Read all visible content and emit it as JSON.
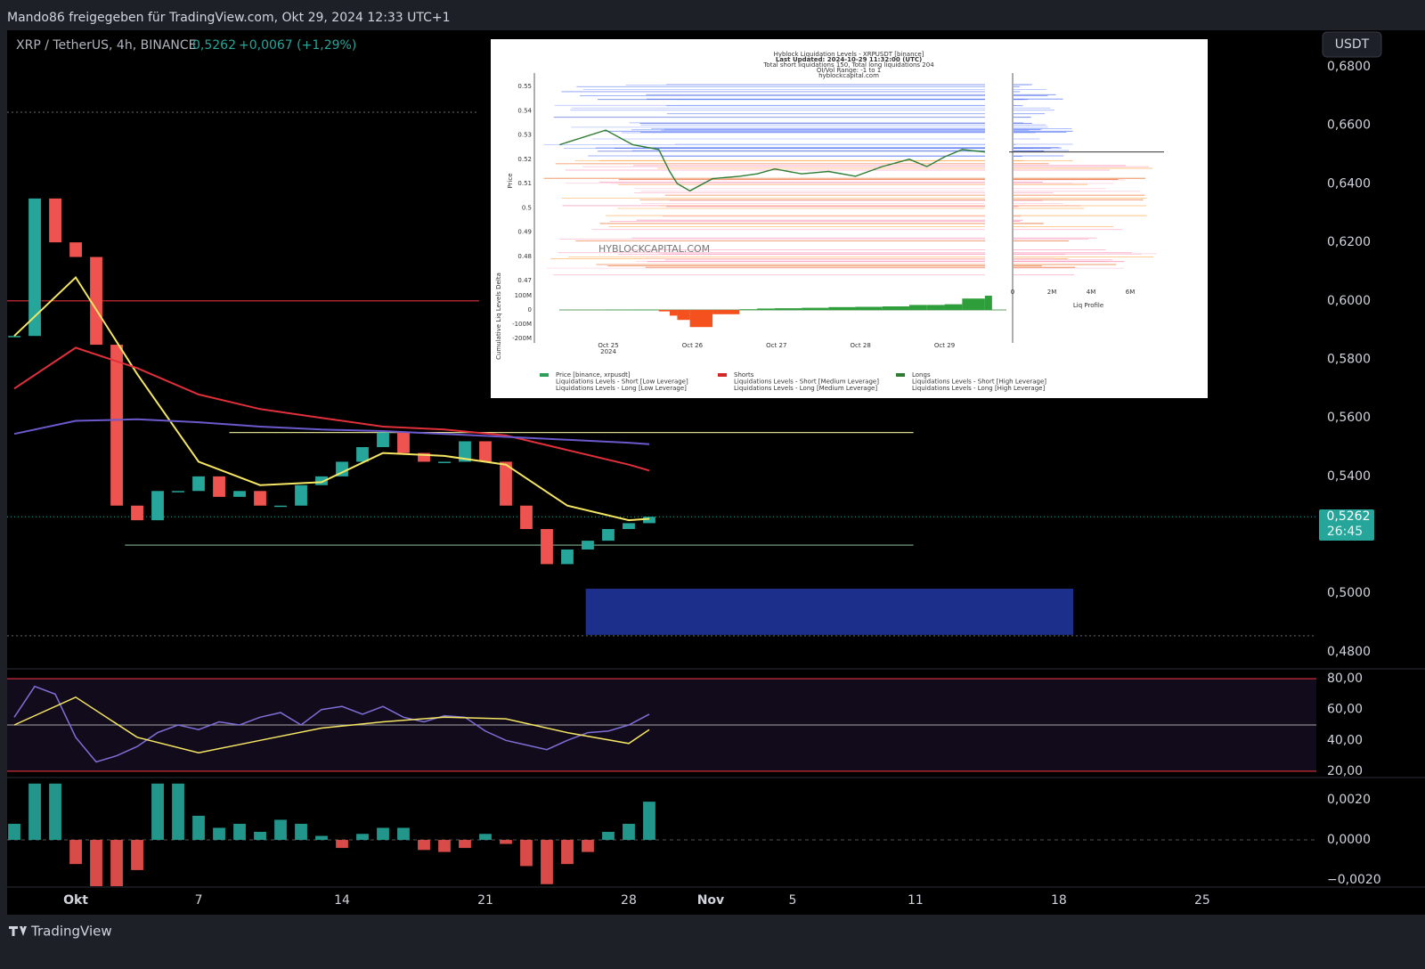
{
  "header": {
    "share_text": "Mando86 freigegeben für TradingView.com, Okt 29, 2024 12:33 UTC+1",
    "symbol": "XRP / TetherUS, 4h, BINANCE",
    "last_price": "0,5262",
    "change": "+0,0067 (+1,29%)",
    "currency_button": "USDT",
    "price_tag": {
      "value": 0.5262,
      "label": "0,5262"
    },
    "countdown": "26:45",
    "footer": "TradingView"
  },
  "price_chart": {
    "xlim": [
      -2.35,
      61.57
    ],
    "ylim": [
      0.4745,
      0.6925
    ],
    "yticks": [
      {
        "value": 0.68,
        "label": "0,6800"
      },
      {
        "value": 0.66,
        "label": "0,6600"
      },
      {
        "value": 0.64,
        "label": "0,6400"
      },
      {
        "value": 0.62,
        "label": "0,6200"
      },
      {
        "value": 0.6,
        "label": "0,6000"
      },
      {
        "value": 0.58,
        "label": "0,5800"
      },
      {
        "value": 0.56,
        "label": "0,5600"
      },
      {
        "value": 0.54,
        "label": "0,5400"
      },
      {
        "value": 0.52,
        "label": "0,5200"
      },
      {
        "value": 0.5,
        "label": "0,5000"
      },
      {
        "value": 0.48,
        "label": "0,4800"
      }
    ],
    "xticks": [
      {
        "value": 1,
        "label": "Okt"
      },
      7,
      14,
      21,
      28,
      {
        "value": 32,
        "label": "Nov"
      },
      {
        "value": 36,
        "label": "5"
      },
      {
        "value": 42,
        "label": "11"
      },
      {
        "value": 49,
        "label": "18"
      },
      {
        "value": 56,
        "label": "25"
      }
    ],
    "x": [
      -2,
      -1,
      0,
      1,
      2,
      3,
      4,
      5,
      6,
      7,
      8,
      9,
      10,
      11,
      12,
      13,
      14,
      15,
      16,
      17,
      18,
      19,
      20,
      21,
      22,
      23,
      24,
      25,
      26,
      27,
      28,
      29
    ],
    "values": [
      0.588,
      0.635,
      0.62,
      0.615,
      0.585,
      0.53,
      0.525,
      0.535,
      0.535,
      0.54,
      0.533,
      0.535,
      0.53,
      0.53,
      0.537,
      0.54,
      0.545,
      0.55,
      0.555,
      0.548,
      0.545,
      0.545,
      0.552,
      0.545,
      0.53,
      0.522,
      0.51,
      0.515,
      0.518,
      0.522,
      0.524,
      0.5262
    ],
    "up_color": "#26a69a",
    "down_color": "#ef5350",
    "ma_x": [
      -2,
      1,
      4,
      7,
      10,
      13,
      16,
      19,
      22,
      25,
      28,
      29
    ],
    "moving_averages": [
      {
        "color": "#f5e663",
        "values": [
          0.588,
          0.608,
          0.575,
          0.545,
          0.537,
          0.538,
          0.548,
          0.547,
          0.544,
          0.53,
          0.525,
          0.5255
        ]
      },
      {
        "color": "#e0303a",
        "values": [
          0.57,
          0.584,
          0.577,
          0.568,
          0.563,
          0.56,
          0.557,
          0.556,
          0.554,
          0.549,
          0.544,
          0.542
        ]
      },
      {
        "color": "#6a5acd",
        "values": [
          0.5545,
          0.559,
          0.5595,
          0.5585,
          0.557,
          0.556,
          0.5555,
          0.5545,
          0.5535,
          0.5525,
          0.5515,
          0.551
        ]
      }
    ],
    "levels": [
      {
        "value": 0.6,
        "color": "#e0303a",
        "xrange": [
          -2.35,
          20.7
        ]
      },
      {
        "value": 0.555,
        "color": "#d8d88a",
        "xrange": [
          8.5,
          41.9
        ]
      },
      {
        "value": 0.5165,
        "color": "#7fae8a",
        "xrange": [
          3.4,
          41.9
        ]
      },
      {
        "value": 0.6645,
        "color": "#555",
        "xrange": [
          -2.35,
          20.7
        ],
        "dotted": true
      },
      {
        "value": 0.4855,
        "color": "#555",
        "xrange": [
          -2.35,
          61.57
        ],
        "dotted": true
      }
    ],
    "zone": {
      "top": 0.5016,
      "bottom": 0.4858,
      "xrange": [
        25.9,
        49.7
      ],
      "color": "#1c2f8a"
    }
  },
  "rsi": {
    "ylim": [
      16.5,
      85.8
    ],
    "yticks": [
      {
        "value": 80,
        "label": "80,00"
      },
      {
        "value": 60,
        "label": "60,00"
      },
      {
        "value": 40,
        "label": "40,00"
      },
      {
        "value": 20,
        "label": "20,00"
      }
    ],
    "bands": [
      {
        "value": 80,
        "color": "#e0303a"
      },
      {
        "value": 50,
        "color": "#888"
      },
      {
        "value": 20,
        "color": "#e0303a"
      }
    ],
    "color": "#7e6fd6",
    "values": [
      55,
      75,
      70,
      42,
      26,
      30,
      36,
      45,
      50,
      47,
      52,
      50,
      55,
      58,
      50,
      60,
      62,
      57,
      62,
      55,
      52,
      56,
      55,
      46,
      40,
      37,
      34,
      40,
      45,
      46,
      50,
      57
    ],
    "ma_color": "#f5e663",
    "ma_values": [
      50,
      68,
      42,
      32,
      40,
      48,
      52,
      55,
      54,
      45,
      38,
      47
    ]
  },
  "macd": {
    "ylim": [
      -0.0023,
      0.00288
    ],
    "yticks": [
      {
        "value": 0.002,
        "label": "0,0020"
      },
      {
        "value": 0,
        "label": "0,0000"
      },
      {
        "value": -0.002,
        "label": "−0,0020"
      }
    ],
    "values": [
      0.0008,
      0.0028,
      0.0028,
      -0.0012,
      -0.0025,
      -0.0025,
      -0.0015,
      0.0028,
      0.0028,
      0.0012,
      0.0006,
      0.0008,
      0.0004,
      0.001,
      0.0008,
      0.0002,
      -0.0004,
      0.0003,
      0.0006,
      0.0006,
      -0.0005,
      -0.0006,
      -0.0004,
      0.0003,
      -0.0002,
      -0.0013,
      -0.0022,
      -0.0012,
      -0.0006,
      0.0004,
      0.0008,
      0.0019
    ]
  },
  "inset": {
    "title_lines": [
      "Hyblock Liquidation Levels - XRPUSDT [binance]",
      "Last Updated: 2024-10-29 11:32:00 (UTC)",
      "Total short liquidations 150, Total long liquidations 204",
      "OI/Vol Range: -1 to 1",
      "hyblockcapital.com"
    ],
    "watermark": "HYBLOCKCAPITAL.COM",
    "y_label": "Price",
    "delta_label": "Cumulative Liq Levels Delta",
    "profile_label": "Liq Profile",
    "year_label": "2024",
    "xlim": [
      24.12,
      29.81
    ],
    "ylim": [
      0.4627,
      0.5581
    ],
    "yticks": [
      0.55,
      0.54,
      0.53,
      0.52,
      0.51,
      0.5,
      0.49,
      0.48,
      0.47
    ],
    "xticks": [
      {
        "value": 25,
        "label": "Oct 25"
      },
      {
        "value": 26,
        "label": "Oct 26"
      },
      {
        "value": 27,
        "label": "Oct 27"
      },
      {
        "value": 28,
        "label": "Oct 28"
      },
      {
        "value": 29,
        "label": "Oct 29"
      }
    ],
    "x": [
      24.42,
      24.97,
      25.29,
      25.6,
      25.73,
      25.82,
      25.97,
      26.24,
      26.56,
      26.77,
      26.98,
      27.3,
      27.62,
      27.94,
      28.26,
      28.58,
      28.79,
      29.0,
      29.21,
      29.48
    ],
    "price": [
      0.526,
      0.532,
      0.526,
      0.524,
      0.515,
      0.51,
      0.507,
      0.512,
      0.513,
      0.514,
      0.516,
      0.514,
      0.515,
      0.513,
      0.517,
      0.52,
      0.517,
      0.521,
      0.524,
      0.523
    ],
    "delta_ylim": [
      -231,
      162.5
    ],
    "delta_yticks": [
      {
        "value": 100,
        "label": "100M"
      },
      0,
      {
        "value": -100,
        "label": "-100M"
      },
      {
        "value": -200,
        "label": "-200M"
      }
    ],
    "delta": [
      0,
      2,
      3,
      -10,
      -40,
      -70,
      -120,
      -30,
      5,
      10,
      12,
      15,
      20,
      22,
      25,
      35,
      35,
      40,
      80,
      100
    ],
    "profile_ticks": [
      0,
      {
        "value": 2,
        "label": "2M"
      },
      {
        "value": 4,
        "label": "4M"
      },
      {
        "value": 6,
        "label": "6M"
      }
    ],
    "legend": [
      {
        "label": "Price [binance, xrpusdt]",
        "color": "#2e9e5b"
      },
      {
        "label": "Liquidations Levels - Short [Low Leverage]"
      },
      {
        "label": "Liquidations Levels - Long [Low Leverage]"
      },
      {
        "label": "Shorts",
        "color": "#d62728"
      },
      {
        "label": "Liquidations Levels - Short [Medium Leverage]"
      },
      {
        "label": "Liquidations Levels - Long [Medium Leverage]"
      },
      {
        "label": "Longs",
        "color": "#2e7d32"
      },
      {
        "label": "Liquidations Levels - Short [High Leverage]"
      },
      {
        "label": "Liquidations Levels - Long [High Leverage]"
      }
    ]
  }
}
